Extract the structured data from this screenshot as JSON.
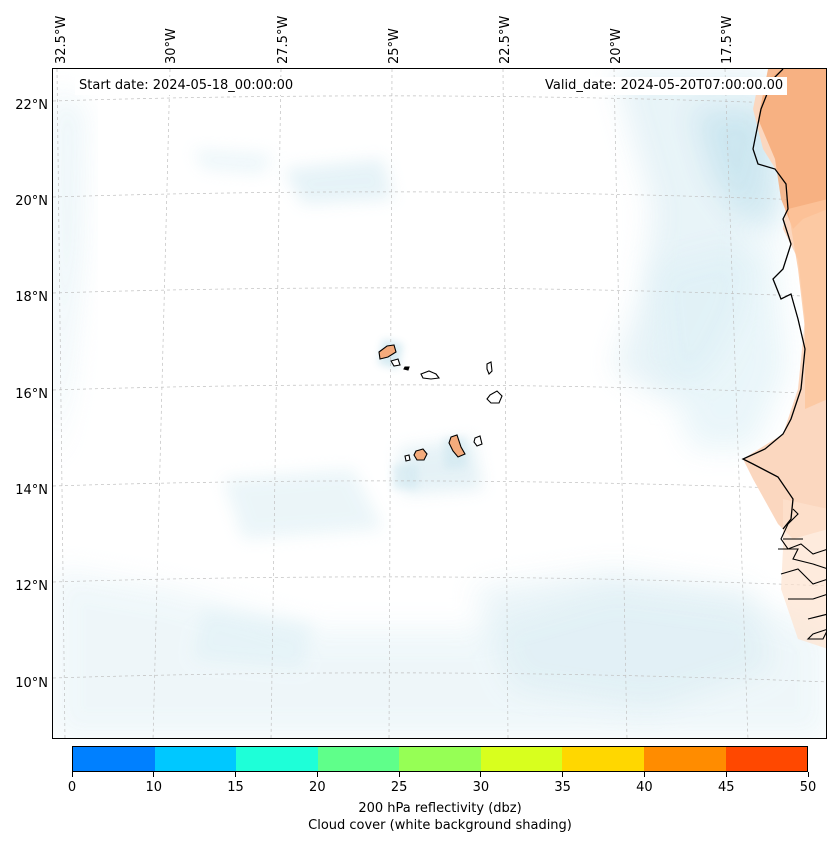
{
  "map": {
    "start_date": "Start date: 2024-05-18_00:00:00",
    "valid_date": "Valid_date: 2024-05-20T07:00:00.00",
    "lon_labels": [
      "32.5°W",
      "30°W",
      "27.5°W",
      "25°W",
      "22.5°W",
      "20°W",
      "17.5°W"
    ],
    "lat_labels": [
      "22°N",
      "20°N",
      "18°N",
      "16°N",
      "14°N",
      "12°N",
      "10°N"
    ],
    "region": "Cabo Verde islands and West African coast"
  },
  "colorbar": {
    "colors": [
      "#0080ff",
      "#00c8ff",
      "#1effd8",
      "#5fff8a",
      "#96ff55",
      "#d8ff1e",
      "#ffd700",
      "#ff8c00",
      "#ff4800"
    ],
    "tick_labels": [
      "0",
      "10",
      "15",
      "20",
      "25",
      "30",
      "35",
      "40",
      "45",
      "50"
    ],
    "label_line1": "200 hPa reflectivity (dbz)",
    "label_line2": "Cloud cover (white background shading)"
  }
}
